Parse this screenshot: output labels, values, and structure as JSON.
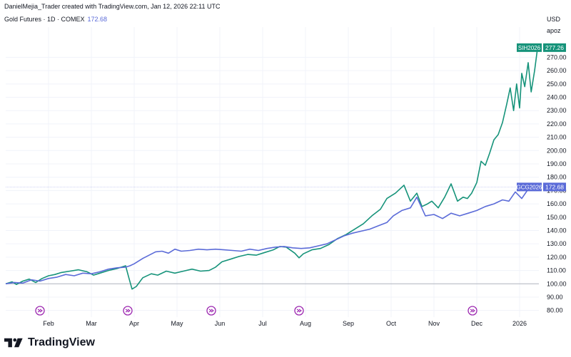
{
  "header": {
    "credit": "DanielMejia_Trader created with TradingView.com, Jan 12, 2026 22:11 UTC"
  },
  "legend": {
    "symbol": "Gold Futures · 1D · COMEX",
    "value": "172.68"
  },
  "axis": {
    "currency": "USD",
    "unit": "apoz"
  },
  "footer": {
    "brand": "TradingView"
  },
  "colors": {
    "silver": "#16937a",
    "gold": "#5b6bd8",
    "grid": "#f0f3fa",
    "baseline": "#b2b5be",
    "event": "#9c27b0"
  },
  "chart_data": {
    "type": "line",
    "title": "Gold Futures · 1D · COMEX",
    "ylabel": "USD apoz",
    "ylim": [
      75,
      282
    ],
    "y_ticks": [
      80,
      90,
      100,
      110,
      120,
      130,
      140,
      150,
      160,
      170,
      180,
      190,
      200,
      210,
      220,
      230,
      240,
      250,
      260,
      270
    ],
    "y_tick_labels": [
      "80.00",
      "90.00",
      "100.00",
      "110.00",
      "120.00",
      "130.00",
      "140.00",
      "150.00",
      "160.00",
      "170.00",
      "180.00",
      "190.00",
      "200.00",
      "210.00",
      "220.00",
      "230.00",
      "240.00",
      "250.00",
      "260.00",
      "270.00"
    ],
    "xlim": [
      0,
      12.45
    ],
    "x_ticks": [
      {
        "label": "Feb",
        "pos": 1
      },
      {
        "label": "Mar",
        "pos": 2
      },
      {
        "label": "Apr",
        "pos": 3
      },
      {
        "label": "May",
        "pos": 4
      },
      {
        "label": "Jun",
        "pos": 5
      },
      {
        "label": "Jul",
        "pos": 6
      },
      {
        "label": "Aug",
        "pos": 7
      },
      {
        "label": "Sep",
        "pos": 8
      },
      {
        "label": "Oct",
        "pos": 9
      },
      {
        "label": "Nov",
        "pos": 10
      },
      {
        "label": "Dec",
        "pos": 11
      },
      {
        "label": "2026",
        "pos": 12
      }
    ],
    "baseline": 100,
    "events": [
      0.8,
      2.85,
      4.8,
      6.85,
      10.9
    ],
    "series": [
      {
        "name": "SIH2026",
        "label": "SIH2026",
        "last_value": "277.26",
        "color": "#16937a",
        "x": [
          0,
          0.15,
          0.25,
          0.4,
          0.55,
          0.7,
          0.85,
          1.0,
          1.15,
          1.3,
          1.5,
          1.7,
          1.9,
          2.05,
          2.2,
          2.4,
          2.6,
          2.8,
          2.88,
          2.95,
          3.05,
          3.2,
          3.4,
          3.55,
          3.75,
          3.95,
          4.15,
          4.35,
          4.55,
          4.75,
          4.9,
          5.05,
          5.25,
          5.45,
          5.65,
          5.85,
          6.05,
          6.25,
          6.4,
          6.55,
          6.75,
          6.85,
          6.95,
          7.15,
          7.35,
          7.55,
          7.75,
          7.95,
          8.15,
          8.35,
          8.55,
          8.75,
          8.9,
          9.1,
          9.3,
          9.45,
          9.6,
          9.72,
          9.85,
          9.95,
          10.1,
          10.25,
          10.4,
          10.55,
          10.68,
          10.78,
          10.88,
          11.0,
          11.1,
          11.2,
          11.3,
          11.4,
          11.5,
          11.6,
          11.7,
          11.78,
          11.86,
          11.93,
          12.0,
          12.05,
          12.12,
          12.2,
          12.27,
          12.35,
          12.42
        ],
        "values": [
          100,
          101.5,
          99.5,
          102,
          103.5,
          101,
          104,
          106,
          107,
          108.5,
          109.5,
          110.5,
          109,
          106.5,
          108,
          110,
          111.5,
          113.5,
          104,
          96,
          98,
          104.5,
          107.5,
          106.5,
          109.5,
          108,
          109.5,
          111,
          109.5,
          110,
          112.5,
          116.5,
          118.5,
          120.5,
          122,
          121.5,
          123.5,
          125.5,
          128,
          127.5,
          123,
          119.5,
          122.5,
          125.5,
          126.5,
          129.5,
          134,
          137,
          141,
          145,
          151,
          156,
          164,
          168,
          174,
          162,
          168,
          158,
          160,
          162,
          157,
          165,
          175,
          162,
          165,
          164,
          168,
          176,
          192,
          189,
          198,
          208,
          212,
          221,
          235,
          247,
          230,
          250,
          232,
          258,
          248,
          266,
          244,
          260,
          277.26
        ]
      },
      {
        "name": "GCG2026",
        "label": "GCG2026",
        "last_value": "172.68",
        "color": "#5b6bd8",
        "x": [
          0,
          0.2,
          0.4,
          0.6,
          0.8,
          1.0,
          1.2,
          1.4,
          1.6,
          1.8,
          2.0,
          2.2,
          2.4,
          2.6,
          2.8,
          2.9,
          3.0,
          3.2,
          3.35,
          3.5,
          3.65,
          3.8,
          3.95,
          4.1,
          4.3,
          4.5,
          4.7,
          4.9,
          5.1,
          5.3,
          5.5,
          5.7,
          5.9,
          6.1,
          6.3,
          6.5,
          6.7,
          6.9,
          7.1,
          7.3,
          7.5,
          7.7,
          7.9,
          8.1,
          8.3,
          8.5,
          8.7,
          8.9,
          9.05,
          9.25,
          9.45,
          9.6,
          9.8,
          10.0,
          10.2,
          10.4,
          10.6,
          10.8,
          11.0,
          11.2,
          11.4,
          11.6,
          11.75,
          11.9,
          12.05,
          12.2,
          12.35,
          12.42
        ],
        "values": [
          100,
          101,
          100.5,
          103,
          102,
          104,
          105,
          107,
          106,
          108,
          107.5,
          109,
          111,
          112,
          112.5,
          113.5,
          115,
          119,
          121.5,
          124,
          124.5,
          123,
          126,
          124.5,
          125,
          126,
          125.5,
          126,
          125.5,
          125,
          124.5,
          126,
          125,
          126.5,
          127.5,
          128,
          127,
          126.5,
          127,
          128.5,
          130,
          133,
          136,
          138,
          139.5,
          141,
          143.5,
          146,
          151,
          155,
          157,
          165,
          151,
          152,
          149,
          153,
          151,
          153,
          155,
          158,
          160,
          163,
          162,
          169,
          164,
          171,
          170,
          172.68
        ]
      }
    ]
  }
}
